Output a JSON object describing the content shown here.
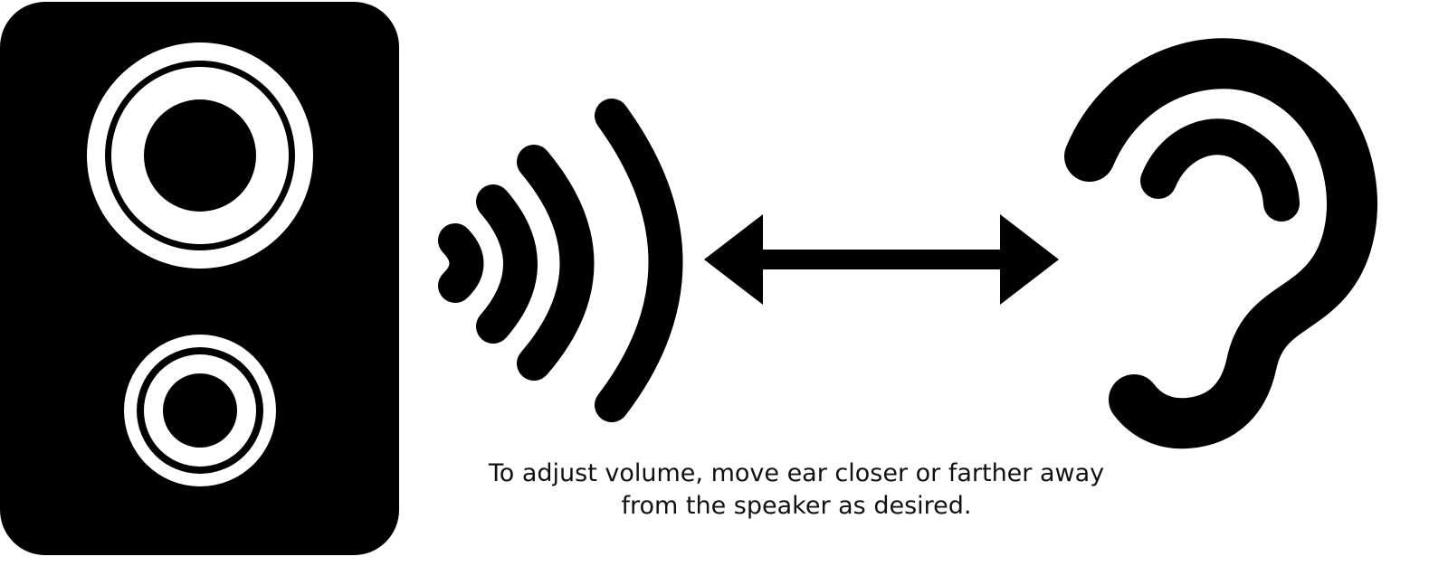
{
  "caption": {
    "line1": "To adjust volume, move ear closer or farther away",
    "line2": "from the speaker as desired."
  },
  "icons": {
    "speaker": "speaker-icon",
    "sound_waves": "sound-waves-icon",
    "arrow": "double-arrow-icon",
    "ear": "ear-icon"
  },
  "colors": {
    "ink": "#000000",
    "background": "#ffffff"
  }
}
